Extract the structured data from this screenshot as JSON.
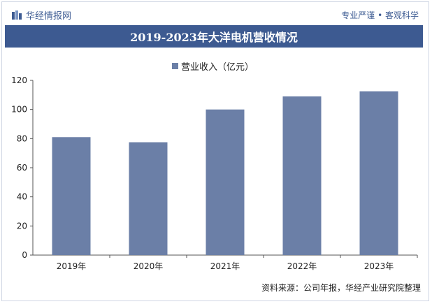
{
  "header": {
    "brand": "华经情报网",
    "slogan": "专业严谨 • 客观科学"
  },
  "footer": {
    "source": "资料来源：公司年报，华经产业研究院整理",
    "watermark": "华经产业研究院"
  },
  "colors": {
    "bar": "#6b7fa7",
    "title_bg": "#3d5a91",
    "brand": "#3e5c93"
  },
  "chart_data": {
    "type": "bar",
    "title": "2019-2023年大洋电机营收情况",
    "categories": [
      "2019年",
      "2020年",
      "2021年",
      "2022年",
      "2023年"
    ],
    "series": [
      {
        "name": "营业收入（亿元）",
        "values": [
          81,
          77.5,
          100,
          109,
          112.5
        ]
      }
    ],
    "ylim": [
      0,
      120
    ],
    "yticks": [
      0,
      20,
      40,
      60,
      80,
      100,
      120
    ],
    "grid": false,
    "legend": "top-center"
  }
}
